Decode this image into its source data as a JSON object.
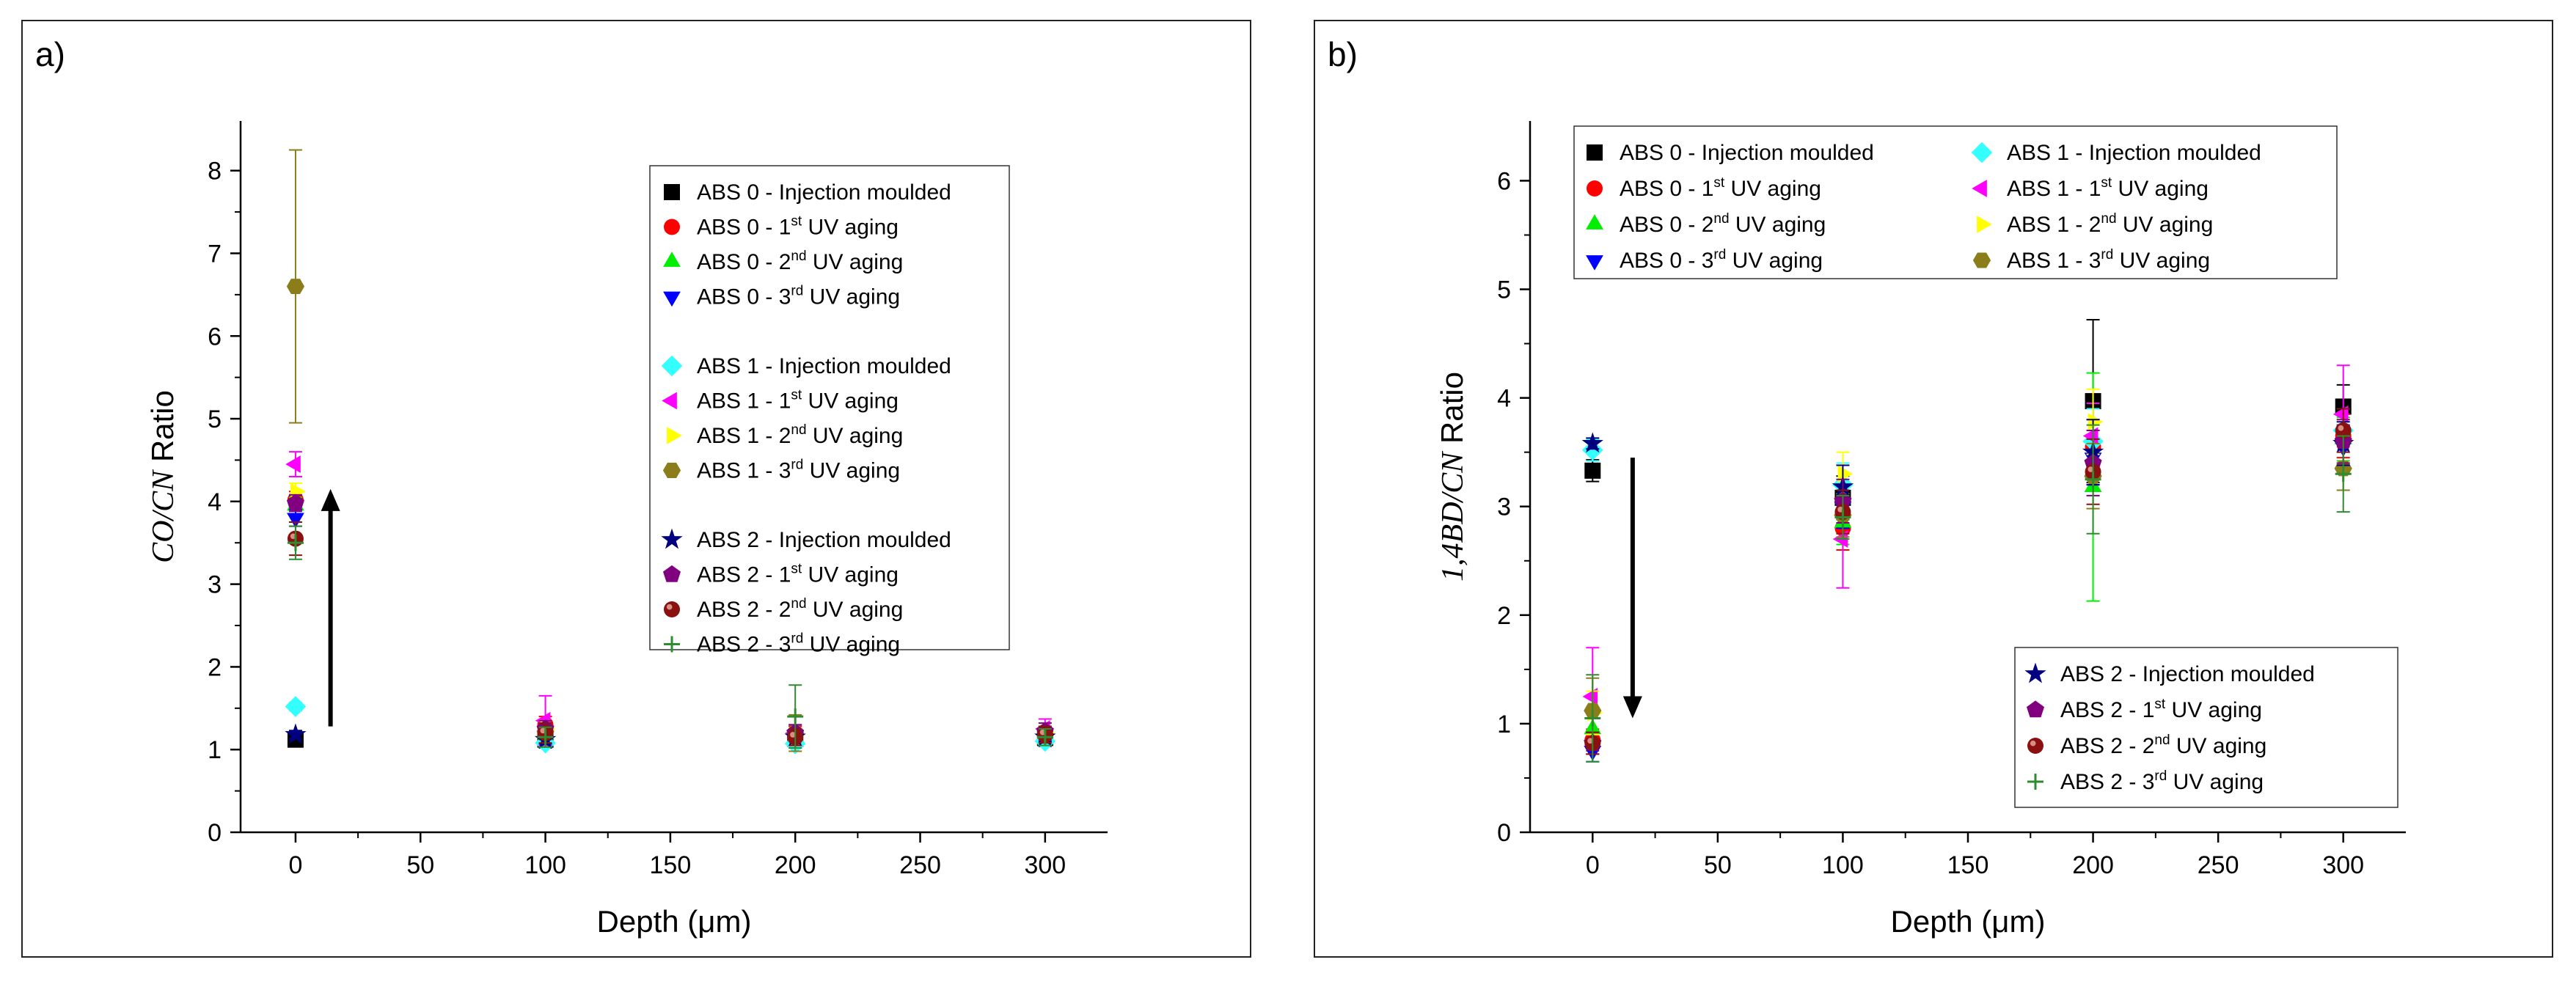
{
  "colors": {
    "abs0_inj": "#000000",
    "abs0_uv1": "#ff0000",
    "abs0_uv2": "#00ee00",
    "abs0_uv3": "#0000ff",
    "abs1_inj": "#33ffff",
    "abs1_uv1": "#ff00ff",
    "abs1_uv2": "#ffff00",
    "abs1_uv3": "#8b7d1a",
    "abs2_inj": "#000080",
    "abs2_uv1": "#800080",
    "abs2_uv2": "#8b1010",
    "abs2_uv3": "#2e8b2e"
  },
  "chart_data": [
    {
      "panel_label": "a)",
      "type": "scatter",
      "xlabel": "Depth (μm)",
      "ylabel_italic": "CO/CN",
      "ylabel_rest": " Ratio",
      "xlim": [
        -22,
        325
      ],
      "ylim": [
        0,
        8.6
      ],
      "xticks": [
        0,
        50,
        100,
        150,
        200,
        250,
        300
      ],
      "yticks": [
        0,
        1,
        2,
        3,
        4,
        5,
        6,
        7,
        8
      ],
      "arrow": {
        "direction": "up",
        "x": 14,
        "y_from": 1.28,
        "y_to": 4.15
      },
      "legend_groups": [
        [
          {
            "label": "ABS 0 - Injection moulded",
            "marker": "square",
            "color": "abs0_inj"
          },
          {
            "label": "ABS 0 - 1",
            "sup": "st",
            "tail": " UV aging",
            "marker": "circle",
            "color": "abs0_uv1"
          },
          {
            "label": "ABS 0 - 2",
            "sup": "nd",
            "tail": " UV aging",
            "marker": "tri-up",
            "color": "abs0_uv2"
          },
          {
            "label": "ABS 0 - 3",
            "sup": "rd",
            "tail": " UV aging",
            "marker": "tri-down",
            "color": "abs0_uv3"
          }
        ],
        [
          {
            "label": "ABS 1 - Injection moulded",
            "marker": "diamond",
            "color": "abs1_inj"
          },
          {
            "label": "ABS 1 - 1",
            "sup": "st",
            "tail": " UV aging",
            "marker": "tri-left",
            "color": "abs1_uv1"
          },
          {
            "label": "ABS 1 - 2",
            "sup": "nd",
            "tail": " UV aging",
            "marker": "tri-right",
            "color": "abs1_uv2"
          },
          {
            "label": "ABS 1 - 3",
            "sup": "rd",
            "tail": " UV aging",
            "marker": "hexagon",
            "color": "abs1_uv3"
          }
        ],
        [
          {
            "label": "ABS 2 - Injection moulded",
            "marker": "star",
            "color": "abs2_inj"
          },
          {
            "label": "ABS 2 - 1",
            "sup": "st",
            "tail": " UV aging",
            "marker": "pentagon",
            "color": "abs2_uv1"
          },
          {
            "label": "ABS 2 - 2",
            "sup": "nd",
            "tail": " UV aging",
            "marker": "sphere",
            "color": "abs2_uv2"
          },
          {
            "label": "ABS 2 - 3",
            "sup": "rd",
            "tail": " UV aging",
            "marker": "plus",
            "color": "abs2_uv3"
          }
        ]
      ],
      "series": [
        {
          "name": "ABS 0 - Injection moulded",
          "marker": "square",
          "color": "abs0_inj",
          "x": [
            0,
            100,
            200,
            300
          ],
          "y": [
            1.12,
            1.12,
            1.13,
            1.14
          ],
          "err": [
            0.05,
            0.06,
            0.06,
            0.06
          ]
        },
        {
          "name": "ABS 0 - 1st UV aging",
          "marker": "circle",
          "color": "abs0_uv1",
          "x": [
            0,
            100,
            200,
            300
          ],
          "y": [
            4.02,
            1.3,
            1.2,
            1.2
          ],
          "err": [
            0.1,
            0.1,
            0.08,
            0.08
          ]
        },
        {
          "name": "ABS 0 - 2nd UV aging",
          "marker": "tri-up",
          "color": "abs0_uv2",
          "x": [
            0,
            100,
            200,
            300
          ],
          "y": [
            3.95,
            1.15,
            1.15,
            1.15
          ],
          "err": [
            0.1,
            0.08,
            0.08,
            0.08
          ]
        },
        {
          "name": "ABS 0 - 3rd UV aging",
          "marker": "tri-down",
          "color": "abs0_uv3",
          "x": [
            0,
            100,
            200,
            300
          ],
          "y": [
            3.8,
            1.1,
            1.12,
            1.12
          ],
          "err": [
            0.1,
            0.08,
            0.08,
            0.08
          ]
        },
        {
          "name": "ABS 1 - Injection moulded",
          "marker": "diamond",
          "color": "abs1_inj",
          "x": [
            0,
            100,
            200,
            300
          ],
          "y": [
            1.52,
            1.08,
            1.07,
            1.1
          ],
          "err": [
            0.05,
            0.05,
            0.05,
            0.05
          ]
        },
        {
          "name": "ABS 1 - 1st UV aging",
          "marker": "tri-left",
          "color": "abs1_uv1",
          "x": [
            0,
            100,
            200,
            300
          ],
          "y": [
            4.45,
            1.35,
            1.2,
            1.25
          ],
          "err": [
            0.15,
            0.3,
            0.1,
            0.12
          ]
        },
        {
          "name": "ABS 1 - 2nd UV aging",
          "marker": "tri-right",
          "color": "abs1_uv2",
          "x": [
            0,
            100,
            200,
            300
          ],
          "y": [
            4.12,
            1.25,
            1.18,
            1.2
          ],
          "err": [
            0.1,
            0.1,
            0.08,
            0.08
          ]
        },
        {
          "name": "ABS 1 - 3rd UV aging",
          "marker": "hexagon",
          "color": "abs1_uv3",
          "x": [
            0,
            100,
            200,
            300
          ],
          "y": [
            6.6,
            1.22,
            1.2,
            1.18
          ],
          "err": [
            1.65,
            0.1,
            0.22,
            0.1
          ]
        },
        {
          "name": "ABS 2 - Injection moulded",
          "marker": "star",
          "color": "abs2_inj",
          "x": [
            0,
            100,
            200,
            300
          ],
          "y": [
            1.18,
            1.12,
            1.15,
            1.15
          ],
          "err": [
            0.05,
            0.05,
            0.05,
            0.05
          ]
        },
        {
          "name": "ABS 2 - 1st UV aging",
          "marker": "pentagon",
          "color": "abs2_uv1",
          "x": [
            0,
            100,
            200,
            300
          ],
          "y": [
            3.98,
            1.25,
            1.2,
            1.22
          ],
          "err": [
            0.1,
            0.1,
            0.1,
            0.1
          ]
        },
        {
          "name": "ABS 2 - 2nd UV aging",
          "marker": "sphere",
          "color": "abs2_uv2",
          "x": [
            0,
            100,
            200,
            300
          ],
          "y": [
            3.55,
            1.2,
            1.15,
            1.18
          ],
          "err": [
            0.2,
            0.12,
            0.1,
            0.1
          ]
        },
        {
          "name": "ABS 2 - 3rd UV aging",
          "marker": "plus",
          "color": "abs2_uv3",
          "x": [
            0,
            100,
            200,
            300
          ],
          "y": [
            3.5,
            1.15,
            1.4,
            1.15
          ],
          "err": [
            0.2,
            0.12,
            0.38,
            0.1
          ]
        }
      ]
    },
    {
      "panel_label": "b)",
      "type": "scatter",
      "xlabel": "Depth (μm)",
      "ylabel_italic": "1,4BD/CN",
      "ylabel_rest": " Ratio",
      "xlim": [
        -25,
        325
      ],
      "ylim": [
        0,
        6.55
      ],
      "xticks": [
        0,
        50,
        100,
        150,
        200,
        250,
        300
      ],
      "yticks": [
        0,
        1,
        2,
        3,
        4,
        5,
        6
      ],
      "arrow": {
        "direction": "down",
        "x": 16,
        "y_from": 3.45,
        "y_to": 1.05
      },
      "legend_groups": [
        [
          {
            "label": "ABS 0 - Injection moulded",
            "marker": "square",
            "color": "abs0_inj"
          },
          {
            "label": "ABS 0 - 1",
            "sup": "st",
            "tail": " UV aging",
            "marker": "circle",
            "color": "abs0_uv1"
          },
          {
            "label": "ABS 0 - 2",
            "sup": "nd",
            "tail": " UV aging",
            "marker": "tri-up",
            "color": "abs0_uv2"
          },
          {
            "label": "ABS 0 - 3",
            "sup": "rd",
            "tail": " UV aging",
            "marker": "tri-down",
            "color": "abs0_uv3"
          }
        ],
        [
          {
            "label": "ABS 1 - Injection moulded",
            "marker": "diamond",
            "color": "abs1_inj"
          },
          {
            "label": "ABS 1 - 1",
            "sup": "st",
            "tail": " UV aging",
            "marker": "tri-left",
            "color": "abs1_uv1"
          },
          {
            "label": "ABS 1 - 2",
            "sup": "nd",
            "tail": " UV aging",
            "marker": "tri-right",
            "color": "abs1_uv2"
          },
          {
            "label": "ABS 1 - 3",
            "sup": "rd",
            "tail": " UV aging",
            "marker": "hexagon",
            "color": "abs1_uv3"
          }
        ],
        [
          {
            "label": "ABS 2 - Injection moulded",
            "marker": "star",
            "color": "abs2_inj"
          },
          {
            "label": "ABS 2 - 1",
            "sup": "st",
            "tail": " UV aging",
            "marker": "pentagon",
            "color": "abs2_uv1"
          },
          {
            "label": "ABS 2 - 2",
            "sup": "nd",
            "tail": " UV aging",
            "marker": "sphere",
            "color": "abs2_uv2"
          },
          {
            "label": "ABS 2 - 3",
            "sup": "rd",
            "tail": " UV aging",
            "marker": "plus",
            "color": "abs2_uv3"
          }
        ]
      ],
      "series": [
        {
          "name": "ABS 0 - Injection moulded",
          "marker": "square",
          "color": "abs0_inj",
          "x": [
            0,
            100,
            200,
            300
          ],
          "y": [
            3.33,
            3.08,
            3.97,
            3.92
          ],
          "err": [
            0.1,
            0.2,
            0.75,
            0.2
          ]
        },
        {
          "name": "ABS 0 - 1st UV aging",
          "marker": "circle",
          "color": "abs0_uv1",
          "x": [
            0,
            100,
            200,
            300
          ],
          "y": [
            0.85,
            2.8,
            3.55,
            3.65
          ],
          "err": [
            0.1,
            0.2,
            0.25,
            0.2
          ]
        },
        {
          "name": "ABS 0 - 2nd UV aging",
          "marker": "tri-up",
          "color": "abs0_uv2",
          "x": [
            0,
            100,
            200,
            300
          ],
          "y": [
            0.95,
            2.85,
            3.18,
            3.62
          ],
          "err": [
            0.1,
            0.2,
            1.05,
            0.2
          ]
        },
        {
          "name": "ABS 0 - 3rd UV aging",
          "marker": "tri-down",
          "color": "abs0_uv3",
          "x": [
            0,
            100,
            200,
            300
          ],
          "y": [
            0.75,
            3.0,
            3.45,
            3.55
          ],
          "err": [
            0.1,
            0.2,
            0.25,
            0.2
          ]
        },
        {
          "name": "ABS 1 - Injection moulded",
          "marker": "diamond",
          "color": "abs1_inj",
          "x": [
            0,
            100,
            200,
            300
          ],
          "y": [
            3.52,
            3.2,
            3.6,
            3.7
          ],
          "err": [
            0.1,
            0.2,
            0.3,
            0.2
          ]
        },
        {
          "name": "ABS 1 - 1st UV aging",
          "marker": "tri-left",
          "color": "abs1_uv1",
          "x": [
            0,
            100,
            200,
            300
          ],
          "y": [
            1.25,
            2.7,
            3.65,
            3.85
          ],
          "err": [
            0.45,
            0.45,
            0.3,
            0.45
          ]
        },
        {
          "name": "ABS 1 - 2nd UV aging",
          "marker": "tri-right",
          "color": "abs1_uv2",
          "x": [
            0,
            100,
            200,
            300
          ],
          "y": [
            1.1,
            3.3,
            3.78,
            3.6
          ],
          "err": [
            0.2,
            0.2,
            0.3,
            0.2
          ]
        },
        {
          "name": "ABS 1 - 3rd UV aging",
          "marker": "hexagon",
          "color": "abs1_uv3",
          "x": [
            0,
            100,
            200,
            300
          ],
          "y": [
            1.12,
            2.92,
            3.28,
            3.35
          ],
          "err": [
            0.3,
            0.2,
            0.3,
            0.2
          ]
        },
        {
          "name": "ABS 2 - Injection moulded",
          "marker": "star",
          "color": "abs2_inj",
          "x": [
            0,
            100,
            200,
            300
          ],
          "y": [
            3.58,
            3.18,
            3.5,
            3.58
          ],
          "err": [
            0.05,
            0.2,
            0.3,
            0.2
          ]
        },
        {
          "name": "ABS 2 - 1st UV aging",
          "marker": "pentagon",
          "color": "abs2_uv1",
          "x": [
            0,
            100,
            200,
            300
          ],
          "y": [
            0.82,
            3.05,
            3.4,
            3.6
          ],
          "err": [
            0.1,
            0.2,
            0.3,
            0.2
          ]
        },
        {
          "name": "ABS 2 - 2nd UV aging",
          "marker": "sphere",
          "color": "abs2_uv2",
          "x": [
            0,
            100,
            200,
            300
          ],
          "y": [
            0.82,
            2.95,
            3.32,
            3.7
          ],
          "err": [
            0.1,
            0.2,
            0.3,
            0.2
          ]
        },
        {
          "name": "ABS 2 - 3rd UV aging",
          "marker": "plus",
          "color": "abs2_uv3",
          "x": [
            0,
            100,
            200,
            300
          ],
          "y": [
            1.05,
            2.9,
            3.25,
            3.3
          ],
          "err": [
            0.4,
            0.2,
            0.5,
            0.35
          ]
        }
      ]
    }
  ]
}
